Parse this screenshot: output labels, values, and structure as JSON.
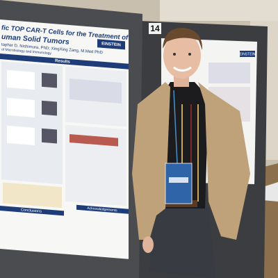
{
  "poster_left": {
    "title_line1": "fic TOP CAR-T Cells for the Treatment of",
    "title_line2": "uman Solid Tumors",
    "authors": "topher D. Nishimura, PhD; XingXing Zang, M.Med PhD",
    "department": "of Microbiology and Immunology",
    "logo": "EINSTEIN",
    "section_results": "Results",
    "section_conclusions": "Conclusions",
    "section_acknowledgements": "Acknowledgements"
  },
  "board_number": "14",
  "poster_right": {
    "logo": "EINSTEIN"
  }
}
